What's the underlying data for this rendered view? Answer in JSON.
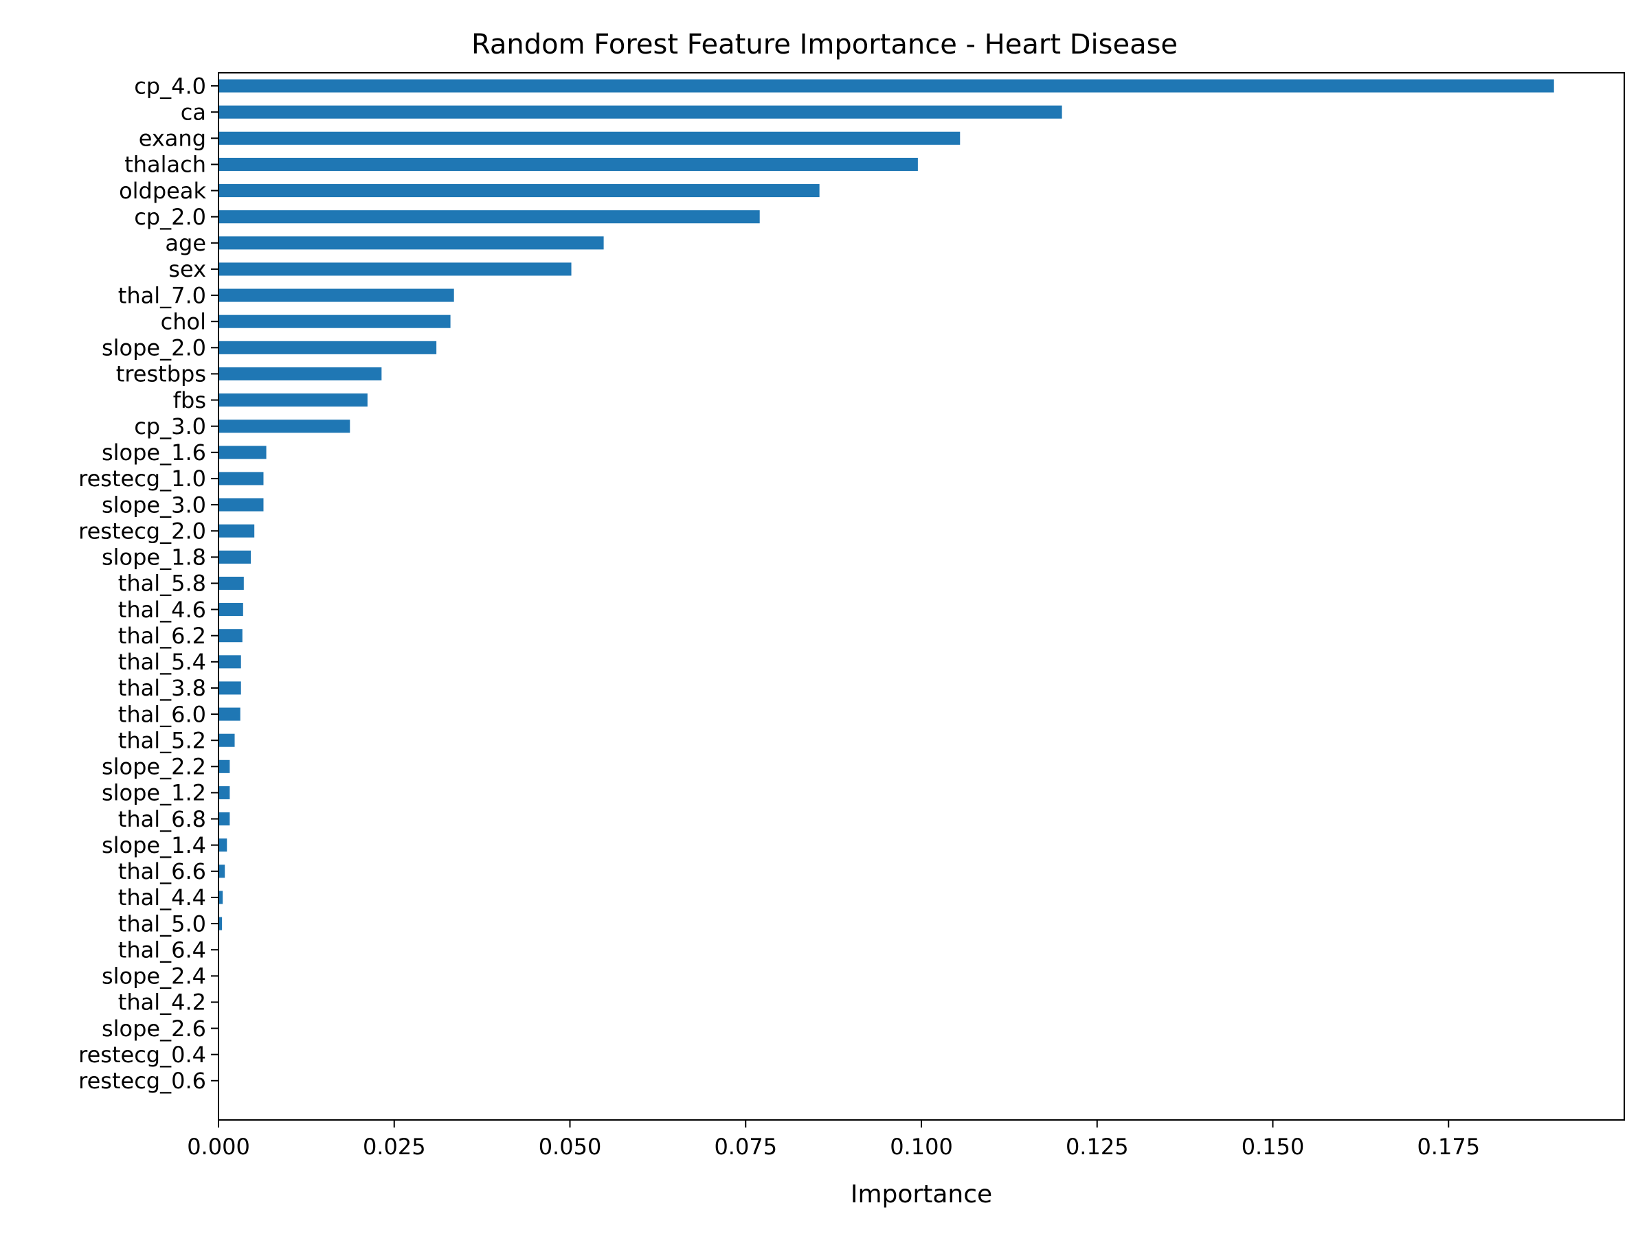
{
  "chart_data": {
    "type": "bar",
    "orientation": "horizontal",
    "title": "Random Forest Feature Importance - Heart Disease",
    "xlabel": "Importance",
    "ylabel": "",
    "xlim": [
      0,
      0.2
    ],
    "xticks": [
      0.0,
      0.025,
      0.05,
      0.075,
      0.1,
      0.125,
      0.15,
      0.175
    ],
    "xtick_labels": [
      "0.000",
      "0.025",
      "0.050",
      "0.075",
      "0.100",
      "0.125",
      "0.150",
      "0.175"
    ],
    "grid": false,
    "bar_color": "#1f77b4",
    "categories": [
      "cp_4.0",
      "ca",
      "exang",
      "thalach",
      "oldpeak",
      "cp_2.0",
      "age",
      "sex",
      "thal_7.0",
      "chol",
      "slope_2.0",
      "trestbps",
      "fbs",
      "cp_3.0",
      "slope_1.6",
      "restecg_1.0",
      "slope_3.0",
      "restecg_2.0",
      "slope_1.8",
      "thal_5.8",
      "thal_4.6",
      "thal_6.2",
      "thal_5.4",
      "thal_3.8",
      "thal_6.0",
      "thal_5.2",
      "slope_2.2",
      "slope_1.2",
      "thal_6.8",
      "slope_1.4",
      "thal_6.6",
      "thal_4.4",
      "thal_5.0",
      "thal_6.4",
      "slope_2.4",
      "thal_4.2",
      "slope_2.6",
      "restecg_0.4",
      "restecg_0.6"
    ],
    "values": [
      0.19,
      0.12,
      0.1055,
      0.0995,
      0.0855,
      0.077,
      0.0548,
      0.0502,
      0.0335,
      0.033,
      0.031,
      0.0232,
      0.0212,
      0.0187,
      0.0068,
      0.0064,
      0.0064,
      0.0051,
      0.0046,
      0.0036,
      0.0035,
      0.0034,
      0.0032,
      0.0032,
      0.0031,
      0.0023,
      0.0016,
      0.0016,
      0.0016,
      0.0012,
      0.0009,
      0.0006,
      0.0005,
      0.0,
      0.0,
      0.0,
      0.0,
      0.0,
      0.0
    ]
  }
}
